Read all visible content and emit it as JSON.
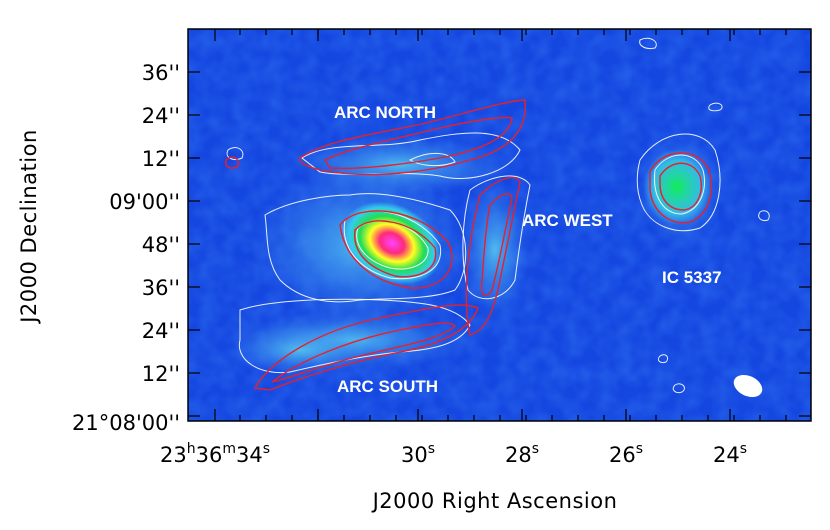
{
  "chart_data": {
    "type": "heatmap",
    "title": "",
    "xlabel": "J2000 Right Ascension",
    "ylabel": "J2000 Declination",
    "x_ticks": [
      {
        "h": "23",
        "m": "36",
        "s": "34"
      },
      {
        "s": "30"
      },
      {
        "s": "28"
      },
      {
        "s": "26"
      },
      {
        "s": "24"
      }
    ],
    "y_ticks": [
      "36''",
      "24''",
      "12''",
      "09'00''",
      "48''",
      "36''",
      "24''",
      "12''",
      "21°08'00''"
    ],
    "xlim_s": [
      35.2,
      22.4
    ],
    "ylim_arcsec": [
      62,
      44
    ],
    "grid": false,
    "colormap": "blue-cyan-green-yellow-red-magenta",
    "contour_colors": {
      "map": "#ffffff",
      "overlay": "#e8202a"
    },
    "annotations": [
      {
        "text": "ARC NORTH",
        "ra_s": 30.4,
        "dec_arcsec": 96
      },
      {
        "text": "ARC WEST",
        "ra_s": 26.95,
        "dec_arcsec": 52
      },
      {
        "text": "IC 5337",
        "ra_s": 25.1,
        "dec_arcsec": 33
      },
      {
        "text": "ARC SOUTH",
        "ra_s": 30.4,
        "dec_arcsec": -14
      }
    ],
    "sources": [
      {
        "name": "central peak",
        "ra_s": 30.65,
        "dec_arcsec": 50,
        "peak": 1.0
      },
      {
        "name": "IC 5337",
        "ra_s": 24.95,
        "dec_arcsec": 66,
        "peak": 0.6
      }
    ],
    "beam": {
      "ra_s": 23.5,
      "dec_arcsec": 11
    }
  }
}
